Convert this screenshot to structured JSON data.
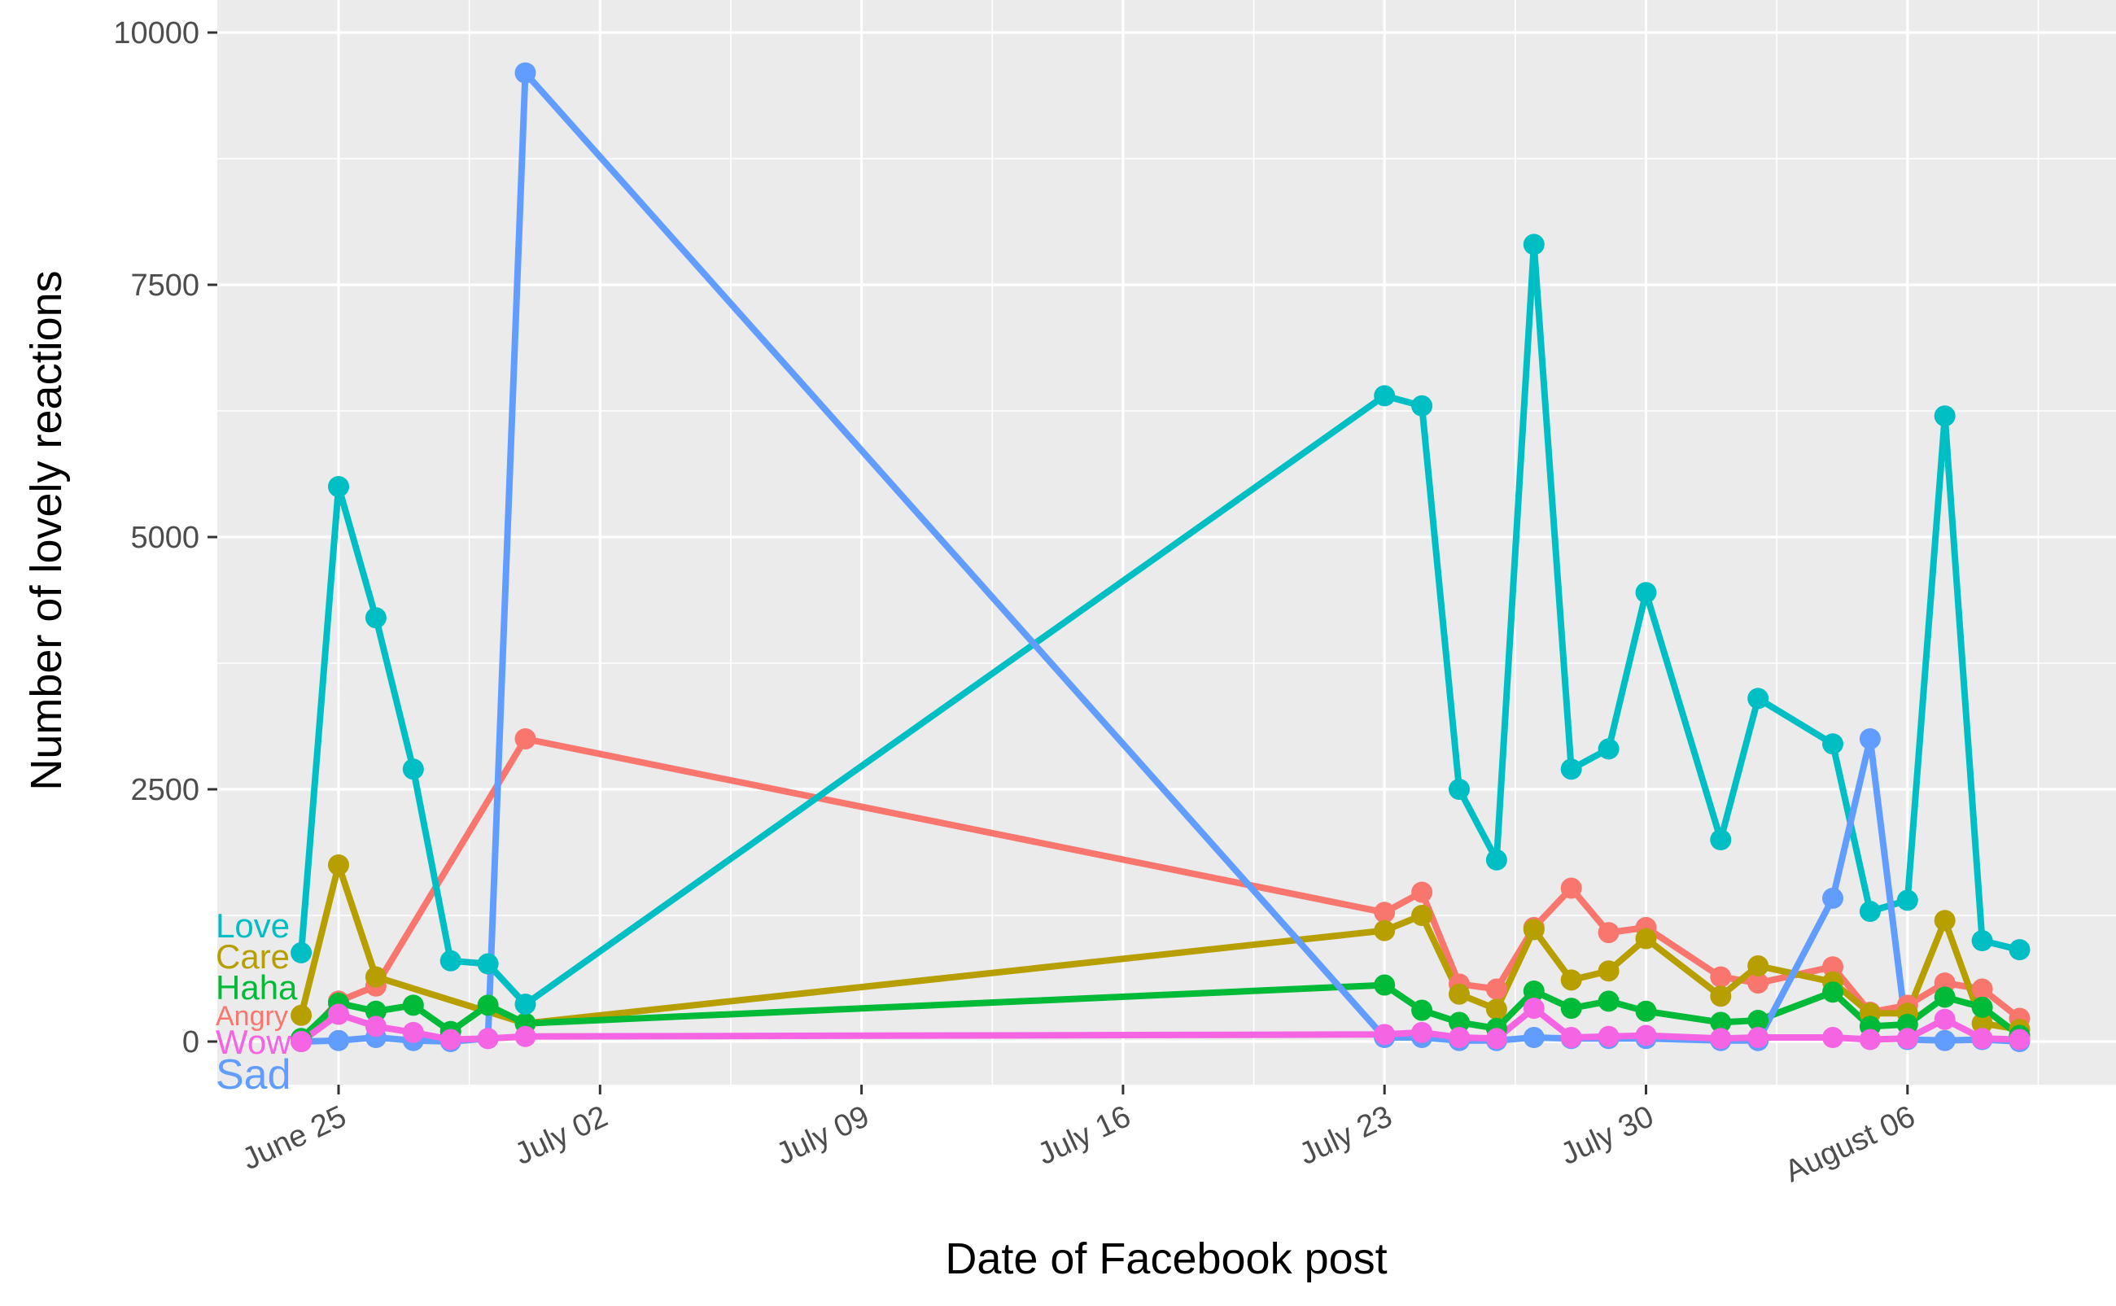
{
  "chart_data": {
    "type": "line",
    "xlabel": "Date of Facebook post",
    "ylabel": "Number of lovely reactions",
    "x_ticks": [
      "June 25",
      "July 02",
      "July 09",
      "July 16",
      "July 23",
      "July 30",
      "August 06"
    ],
    "y_ticks": [
      "0",
      "2500",
      "5000",
      "7500",
      "10000"
    ],
    "ylim": [
      -350,
      10150
    ],
    "xlim": [
      "2024-06-21",
      "2024-08-11"
    ],
    "x_tick_values": [
      "2024-06-25",
      "2024-07-02",
      "2024-07-09",
      "2024-07-16",
      "2024-07-23",
      "2024-07-30",
      "2024-08-06"
    ],
    "y_tick_values": [
      0,
      2500,
      5000,
      7500,
      10000
    ],
    "grid": true,
    "legend": "none",
    "series": [
      {
        "name": "Angry",
        "color": "#F8766D",
        "points": [
          [
            "2024-06-24",
            0
          ],
          [
            "2024-06-25",
            400
          ],
          [
            "2024-06-26",
            550
          ],
          [
            "2024-06-30",
            3000
          ],
          [
            "2024-07-23",
            1280
          ],
          [
            "2024-07-24",
            1480
          ],
          [
            "2024-07-25",
            570
          ],
          [
            "2024-07-26",
            520
          ],
          [
            "2024-07-27",
            1130
          ],
          [
            "2024-07-28",
            1520
          ],
          [
            "2024-07-29",
            1080
          ],
          [
            "2024-07-30",
            1130
          ],
          [
            "2024-08-01",
            640
          ],
          [
            "2024-08-02",
            580
          ],
          [
            "2024-08-04",
            740
          ],
          [
            "2024-08-05",
            290
          ],
          [
            "2024-08-06",
            360
          ],
          [
            "2024-08-07",
            580
          ],
          [
            "2024-08-08",
            520
          ],
          [
            "2024-08-09",
            230
          ]
        ]
      },
      {
        "name": "Care",
        "color": "#B79F00",
        "points": [
          [
            "2024-06-24",
            260
          ],
          [
            "2024-06-25",
            1750
          ],
          [
            "2024-06-26",
            640
          ],
          [
            "2024-06-30",
            180
          ],
          [
            "2024-07-23",
            1100
          ],
          [
            "2024-07-24",
            1250
          ],
          [
            "2024-07-25",
            470
          ],
          [
            "2024-07-26",
            320
          ],
          [
            "2024-07-27",
            1110
          ],
          [
            "2024-07-28",
            610
          ],
          [
            "2024-07-29",
            700
          ],
          [
            "2024-07-30",
            1020
          ],
          [
            "2024-08-01",
            450
          ],
          [
            "2024-08-02",
            750
          ],
          [
            "2024-08-04",
            590
          ],
          [
            "2024-08-05",
            280
          ],
          [
            "2024-08-06",
            280
          ],
          [
            "2024-08-07",
            1200
          ],
          [
            "2024-08-08",
            180
          ],
          [
            "2024-08-09",
            120
          ]
        ]
      },
      {
        "name": "Haha",
        "color": "#00BA38",
        "points": [
          [
            "2024-06-24",
            30
          ],
          [
            "2024-06-25",
            380
          ],
          [
            "2024-06-26",
            300
          ],
          [
            "2024-06-27",
            360
          ],
          [
            "2024-06-28",
            100
          ],
          [
            "2024-06-29",
            360
          ],
          [
            "2024-06-30",
            180
          ],
          [
            "2024-07-23",
            560
          ],
          [
            "2024-07-24",
            310
          ],
          [
            "2024-07-25",
            190
          ],
          [
            "2024-07-26",
            130
          ],
          [
            "2024-07-27",
            500
          ],
          [
            "2024-07-28",
            330
          ],
          [
            "2024-07-29",
            400
          ],
          [
            "2024-07-30",
            300
          ],
          [
            "2024-08-01",
            190
          ],
          [
            "2024-08-02",
            210
          ],
          [
            "2024-08-04",
            490
          ],
          [
            "2024-08-05",
            150
          ],
          [
            "2024-08-06",
            170
          ],
          [
            "2024-08-07",
            440
          ],
          [
            "2024-08-08",
            340
          ],
          [
            "2024-08-09",
            60
          ]
        ]
      },
      {
        "name": "Love",
        "color": "#00BFC4",
        "points": [
          [
            "2024-06-24",
            880
          ],
          [
            "2024-06-25",
            5500
          ],
          [
            "2024-06-26",
            4200
          ],
          [
            "2024-06-27",
            2700
          ],
          [
            "2024-06-28",
            800
          ],
          [
            "2024-06-29",
            770
          ],
          [
            "2024-06-30",
            370
          ],
          [
            "2024-07-23",
            6400
          ],
          [
            "2024-07-24",
            6300
          ],
          [
            "2024-07-25",
            2500
          ],
          [
            "2024-07-26",
            1800
          ],
          [
            "2024-07-27",
            7900
          ],
          [
            "2024-07-28",
            2700
          ],
          [
            "2024-07-29",
            2900
          ],
          [
            "2024-07-30",
            4450
          ],
          [
            "2024-08-01",
            2000
          ],
          [
            "2024-08-02",
            3400
          ],
          [
            "2024-08-04",
            2950
          ],
          [
            "2024-08-05",
            1290
          ],
          [
            "2024-08-06",
            1400
          ],
          [
            "2024-08-07",
            6200
          ],
          [
            "2024-08-08",
            1000
          ],
          [
            "2024-08-09",
            910
          ]
        ]
      },
      {
        "name": "Sad",
        "color": "#619CFF",
        "points": [
          [
            "2024-06-24",
            0
          ],
          [
            "2024-06-25",
            10
          ],
          [
            "2024-06-26",
            40
          ],
          [
            "2024-06-27",
            10
          ],
          [
            "2024-06-28",
            0
          ],
          [
            "2024-06-29",
            30
          ],
          [
            "2024-06-30",
            9600
          ],
          [
            "2024-07-23",
            40
          ],
          [
            "2024-07-24",
            40
          ],
          [
            "2024-07-25",
            10
          ],
          [
            "2024-07-26",
            10
          ],
          [
            "2024-07-27",
            40
          ],
          [
            "2024-07-28",
            30
          ],
          [
            "2024-07-29",
            30
          ],
          [
            "2024-07-30",
            30
          ],
          [
            "2024-08-01",
            10
          ],
          [
            "2024-08-02",
            10
          ],
          [
            "2024-08-04",
            1420
          ],
          [
            "2024-08-05",
            3000
          ],
          [
            "2024-08-06",
            20
          ],
          [
            "2024-08-07",
            10
          ],
          [
            "2024-08-08",
            20
          ],
          [
            "2024-08-09",
            0
          ]
        ]
      },
      {
        "name": "Wow",
        "color": "#F564E3",
        "points": [
          [
            "2024-06-24",
            0
          ],
          [
            "2024-06-25",
            270
          ],
          [
            "2024-06-26",
            150
          ],
          [
            "2024-06-27",
            90
          ],
          [
            "2024-06-28",
            20
          ],
          [
            "2024-06-29",
            30
          ],
          [
            "2024-06-30",
            50
          ],
          [
            "2024-07-23",
            70
          ],
          [
            "2024-07-24",
            90
          ],
          [
            "2024-07-25",
            40
          ],
          [
            "2024-07-26",
            30
          ],
          [
            "2024-07-27",
            330
          ],
          [
            "2024-07-28",
            40
          ],
          [
            "2024-07-29",
            50
          ],
          [
            "2024-07-30",
            60
          ],
          [
            "2024-08-01",
            30
          ],
          [
            "2024-08-02",
            40
          ],
          [
            "2024-08-04",
            40
          ],
          [
            "2024-08-05",
            20
          ],
          [
            "2024-08-06",
            30
          ],
          [
            "2024-08-07",
            220
          ],
          [
            "2024-08-08",
            30
          ],
          [
            "2024-08-09",
            20
          ]
        ]
      }
    ],
    "direct_labels": [
      {
        "text": "Love",
        "series": "Love",
        "color": "#00BFC4",
        "size": "medium"
      },
      {
        "text": "Care",
        "series": "Care",
        "color": "#B79F00",
        "size": "medium"
      },
      {
        "text": "Haha",
        "series": "Haha",
        "color": "#00BA38",
        "size": "medium"
      },
      {
        "text": "Angry",
        "series": "Angry",
        "color": "#F8766D",
        "size": "small"
      },
      {
        "text": "Wow",
        "series": "Wow",
        "color": "#F564E3",
        "size": "medium"
      },
      {
        "text": "Sad",
        "series": "Sad",
        "color": "#619CFF",
        "size": "large"
      }
    ]
  }
}
